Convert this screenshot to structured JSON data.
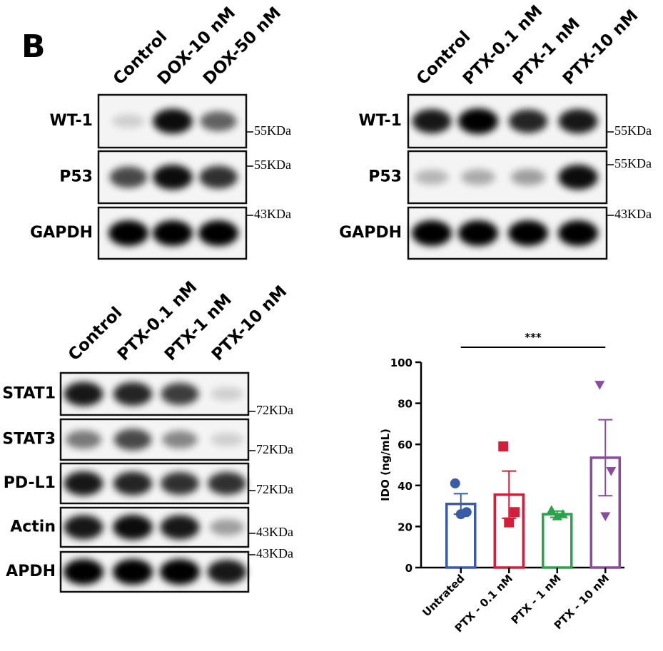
{
  "panel_label": "B",
  "blots": [
    {
      "lanes": [
        "Control",
        "DOX-10 nM",
        "DOX-50 nM"
      ],
      "rows": [
        {
          "label": "WT-1",
          "marker": "55KDa"
        },
        {
          "label": "P53",
          "marker": "55KDa"
        },
        {
          "label": "GAPDH",
          "marker": "43KDa"
        }
      ]
    },
    {
      "lanes": [
        "Control",
        "PTX-0.1 nM",
        "PTX-1 nM",
        "PTX-10 nM"
      ],
      "rows": [
        {
          "label": "WT-1",
          "marker": "55KDa"
        },
        {
          "label": "P53",
          "marker": "55KDa"
        },
        {
          "label": "GAPDH",
          "marker": "43KDa"
        }
      ]
    },
    {
      "lanes": [
        "Control",
        "PTX-0.1 nM",
        "PTX-1 nM",
        "PTX-10 nM"
      ],
      "rows": [
        {
          "label": "STAT1",
          "marker": "72KDa"
        },
        {
          "label": "STAT3",
          "marker": "72KDa"
        },
        {
          "label": "PD-L1",
          "marker": "72KDa"
        },
        {
          "label": "Actin",
          "marker": "43KDa"
        },
        {
          "label": "APDH",
          "marker": "43KDa"
        }
      ]
    }
  ],
  "chart_data": {
    "type": "bar",
    "ylabel": "IDO (ng/mL)",
    "categories": [
      "Untrated",
      "PTX - 0.1 nM",
      "PTX - 1 nM",
      "PTX - 10 nM"
    ],
    "values": [
      31,
      35.5,
      26,
      53.5
    ],
    "errors": [
      5,
      11.5,
      1.5,
      18.5
    ],
    "points": [
      [
        41,
        27,
        26
      ],
      [
        59,
        27,
        22
      ],
      [
        28,
        26,
        25
      ],
      [
        89,
        47,
        25
      ]
    ],
    "colors": [
      "#3a5ca8",
      "#d21f3c",
      "#2ba24c",
      "#8b4a9c"
    ],
    "markers": [
      "circle",
      "square",
      "triangle-up",
      "triangle-down"
    ],
    "significance": "***",
    "ylim": [
      0,
      100
    ],
    "yticks": [
      0,
      20,
      40,
      60,
      80,
      100
    ]
  }
}
